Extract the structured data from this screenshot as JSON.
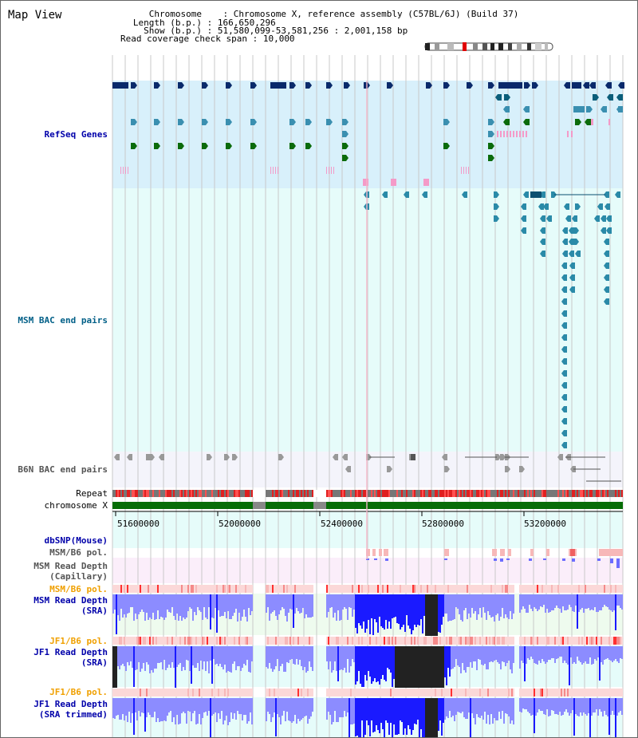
{
  "title": "Map View",
  "info": {
    "chromosome_key": "Chromosome",
    "chromosome_val": ": Chromosome X, reference assembly (C57BL/6J) (Build 37)",
    "length_key": "Length (b.p.)",
    "length_val": ": 166,650,296",
    "show_key": "Show (b.p.)",
    "show_val": ": 51,580,099-53,581,256 : 2,001,158 bp",
    "coverage_key": "Read coverage check span",
    "coverage_val": ": 10,000"
  },
  "tracks": {
    "refseq": "RefSeq Genes",
    "msm_bac": "MSM BAC end pairs",
    "b6n_bac": "B6N BAC end pairs",
    "repeat": "Repeat",
    "chromosome": "chromosome X",
    "dbsnp": "dbSNP(Mouse)",
    "msm_b6_pol_1": "MSM/B6 pol.",
    "msm_depth_cap": "MSM Read Depth\n(Capillary)",
    "msm_b6_pol_2": "MSM/B6 pol.",
    "msm_depth_sra": "MSM Read Depth\n(SRA)",
    "jf1_b6_pol_1": "JF1/B6 pol.",
    "jf1_depth_sra": "JF1 Read Depth\n(SRA)",
    "jf1_b6_pol_2": "JF1/B6 pol.",
    "jf1_depth_trim": "JF1 Read Depth\n(SRA trimmed)"
  },
  "axis": {
    "ticks": [
      "51600000",
      "52000000",
      "52400000",
      "52800000",
      "53200000"
    ]
  },
  "colors": {
    "refseq_bg": "#d8f0fb",
    "msm_bac_bg": "#e6fcfa",
    "b6n_bg": "#f4f4fb",
    "chrom_green": "#066d06",
    "repeat_red": "#e02020",
    "depth_blue": "#1a1aff",
    "depth_light": "#8c8cff",
    "pol_pink": "#f7b8b8"
  }
}
